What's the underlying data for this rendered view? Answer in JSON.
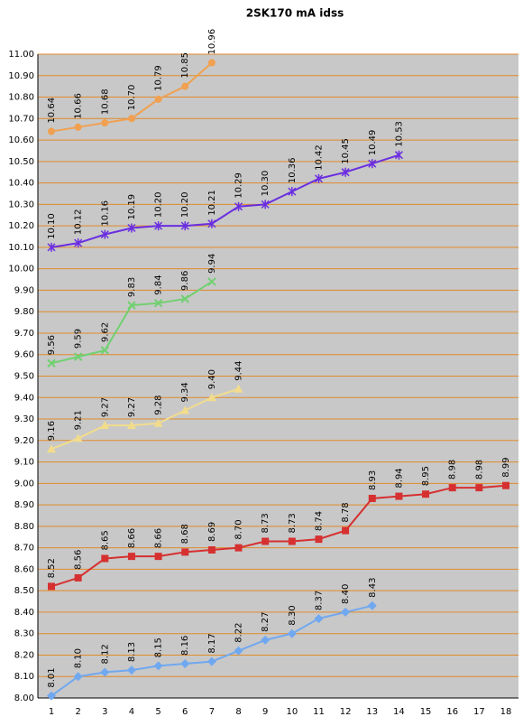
{
  "chart_data": {
    "type": "line",
    "title": "2SK170 mA idss",
    "categories": [
      "1",
      "2",
      "3",
      "4",
      "5",
      "6",
      "7",
      "8",
      "9",
      "10",
      "11",
      "12",
      "13",
      "14",
      "15",
      "16",
      "17",
      "18"
    ],
    "ylim": [
      8.0,
      11.0
    ],
    "yticks": [
      {
        "value": 8.0,
        "label": "8.00"
      },
      {
        "value": 8.1,
        "label": "8.10"
      },
      {
        "value": 8.2,
        "label": "8.20"
      },
      {
        "value": 8.3,
        "label": "8.30"
      },
      {
        "value": 8.4,
        "label": "8.40"
      },
      {
        "value": 8.5,
        "label": "8.50"
      },
      {
        "value": 8.6,
        "label": "8.60"
      },
      {
        "value": 8.7,
        "label": "8.70"
      },
      {
        "value": 8.8,
        "label": "8.80"
      },
      {
        "value": 8.9,
        "label": "8.90"
      },
      {
        "value": 9.0,
        "label": "9.00"
      },
      {
        "value": 9.1,
        "label": "9.10"
      },
      {
        "value": 9.2,
        "label": "9.20"
      },
      {
        "value": 9.3,
        "label": "9.30"
      },
      {
        "value": 9.4,
        "label": "9.40"
      },
      {
        "value": 9.5,
        "label": "9.50"
      },
      {
        "value": 9.6,
        "label": "9.60"
      },
      {
        "value": 9.7,
        "label": "9.70"
      },
      {
        "value": 9.8,
        "label": "9.80"
      },
      {
        "value": 9.9,
        "label": "9.90"
      },
      {
        "value": 10.0,
        "label": "10.00"
      },
      {
        "value": 10.1,
        "label": "10.10"
      },
      {
        "value": 10.2,
        "label": "10.20"
      },
      {
        "value": 10.3,
        "label": "10.30"
      },
      {
        "value": 10.4,
        "label": "10.40"
      },
      {
        "value": 10.5,
        "label": "10.50"
      },
      {
        "value": 10.6,
        "label": "10.60"
      },
      {
        "value": 10.7,
        "label": "10.70"
      },
      {
        "value": 10.8,
        "label": "10.80"
      },
      {
        "value": 10.9,
        "label": "10.90"
      },
      {
        "value": 11.0,
        "label": "11.00"
      }
    ],
    "grid": true,
    "series": [
      {
        "color": "#f0a050",
        "marker": "circle",
        "values": [
          10.64,
          10.66,
          10.68,
          10.7,
          10.79,
          10.85,
          10.96,
          null,
          null,
          null,
          null,
          null,
          null,
          null,
          null,
          null,
          null,
          null
        ],
        "value_labels": [
          "10.64",
          "10.66",
          "10.68",
          "10.70",
          "10.79",
          "10.85",
          "10.96",
          null,
          null,
          null,
          null,
          null,
          null,
          null,
          null,
          null,
          null,
          null
        ]
      },
      {
        "color": "#6a2ee0",
        "marker": "star",
        "values": [
          10.1,
          10.12,
          10.16,
          10.19,
          10.2,
          10.2,
          10.21,
          10.29,
          10.3,
          10.36,
          10.42,
          10.45,
          10.49,
          10.53,
          null,
          null,
          null,
          null
        ],
        "value_labels": [
          "10.10",
          "10.12",
          "10.16",
          "10.19",
          "10.20",
          "10.20",
          "10.21",
          "10.29",
          "10.30",
          "10.36",
          "10.42",
          "10.45",
          "10.49",
          "10.53",
          null,
          null,
          null,
          null
        ]
      },
      {
        "color": "#70d070",
        "marker": "cross",
        "values": [
          9.56,
          9.59,
          9.62,
          9.83,
          9.84,
          9.86,
          9.94,
          null,
          null,
          null,
          null,
          null,
          null,
          null,
          null,
          null,
          null,
          null
        ],
        "value_labels": [
          "9.56",
          "9.59",
          "9.62",
          "9.83",
          "9.84",
          "9.86",
          "9.94",
          null,
          null,
          null,
          null,
          null,
          null,
          null,
          null,
          null,
          null,
          null
        ]
      },
      {
        "color": "#f2dc8c",
        "marker": "triangle",
        "values": [
          9.16,
          9.21,
          9.27,
          9.27,
          9.28,
          9.34,
          9.4,
          9.44,
          null,
          null,
          null,
          null,
          null,
          null,
          null,
          null,
          null,
          null
        ],
        "value_labels": [
          "9.16",
          "9.21",
          "9.27",
          "9.27",
          "9.28",
          "9.34",
          "9.40",
          "9.44",
          null,
          null,
          null,
          null,
          null,
          null,
          null,
          null,
          null,
          null
        ]
      },
      {
        "color": "#d63030",
        "marker": "square",
        "values": [
          8.52,
          8.56,
          8.65,
          8.66,
          8.66,
          8.68,
          8.69,
          8.7,
          8.73,
          8.73,
          8.74,
          8.78,
          8.93,
          8.94,
          8.95,
          8.98,
          8.98,
          8.99
        ],
        "value_labels": [
          "8.52",
          "8.56",
          "8.65",
          "8.66",
          "8.66",
          "8.68",
          "8.69",
          "8.70",
          "8.73",
          "8.73",
          "8.74",
          "8.78",
          "8.93",
          "8.94",
          "8.95",
          "8.98",
          "8.98",
          "8.99"
        ]
      },
      {
        "color": "#70a8f0",
        "marker": "diamond",
        "values": [
          8.01,
          8.1,
          8.12,
          8.13,
          8.15,
          8.16,
          8.17,
          8.22,
          8.27,
          8.3,
          8.37,
          8.4,
          8.43,
          null,
          null,
          null,
          null,
          null
        ],
        "value_labels": [
          "8.01",
          "8.10",
          "8.12",
          "8.13",
          "8.15",
          "8.16",
          "8.17",
          "8.22",
          "8.27",
          "8.30",
          "8.37",
          "8.40",
          "8.43",
          null,
          null,
          null,
          null,
          null
        ]
      }
    ]
  }
}
